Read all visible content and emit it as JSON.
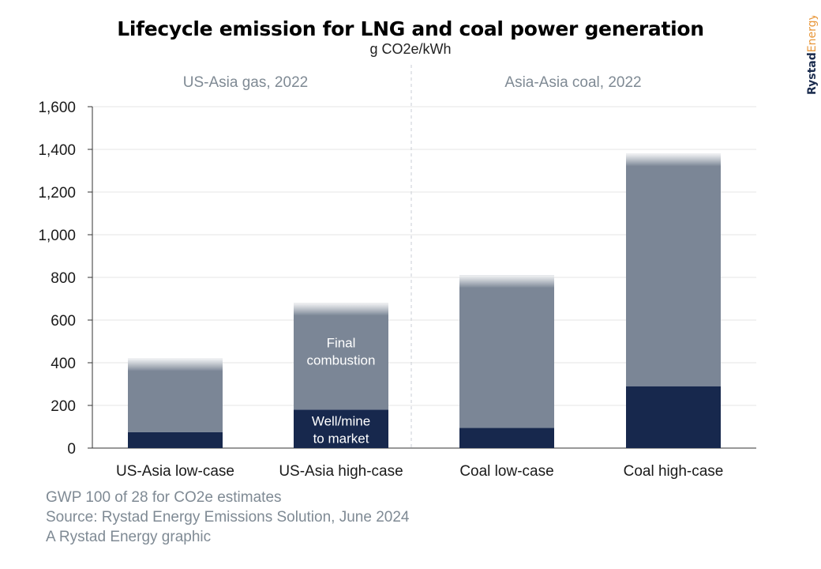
{
  "chart_data": {
    "type": "bar",
    "stacked": true,
    "title": "Lifecycle emission for LNG and coal power generation",
    "subtitle": "g CO2e/kWh",
    "categories": [
      "US-Asia low-case",
      "US-Asia high-case",
      "Coal low-case",
      "Coal high-case"
    ],
    "groups": [
      {
        "label": "US-Asia gas, 2022",
        "categories": [
          0,
          1
        ]
      },
      {
        "label": "Asia-Asia coal, 2022",
        "categories": [
          2,
          3
        ]
      }
    ],
    "series": [
      {
        "name": "Well/mine to market",
        "values": [
          75,
          180,
          95,
          290
        ],
        "color": "#17284d"
      },
      {
        "name": "Final combustion",
        "values": [
          345,
          500,
          715,
          1090
        ],
        "color": "#7b8696"
      }
    ],
    "series_labels": {
      "final_combustion": "Final combustion",
      "well_to_market": "Well/mine to market"
    },
    "ylim": [
      0,
      1600
    ],
    "yticks": [
      0,
      200,
      400,
      600,
      800,
      1000,
      1200,
      1400,
      1600
    ],
    "ytick_labels": [
      "0",
      "200",
      "400",
      "600",
      "800",
      "1,000",
      "1,200",
      "1,400",
      "1,600"
    ],
    "grid": true
  },
  "footer": {
    "line1": "GWP 100 of 28 for CO2e estimates",
    "line2": "Source: Rystad Energy Emissions Solution, June 2024",
    "line3": "A Rystad Energy graphic"
  },
  "brand": {
    "part1": "Rystad",
    "part2": "Energy",
    "color1": "#1b2c4e",
    "color2": "#e8973a"
  },
  "colors": {
    "bar_dark": "#17284d",
    "bar_light": "#7b8696",
    "grid": "#e6e6e6",
    "group_label": "#7f8a94"
  }
}
